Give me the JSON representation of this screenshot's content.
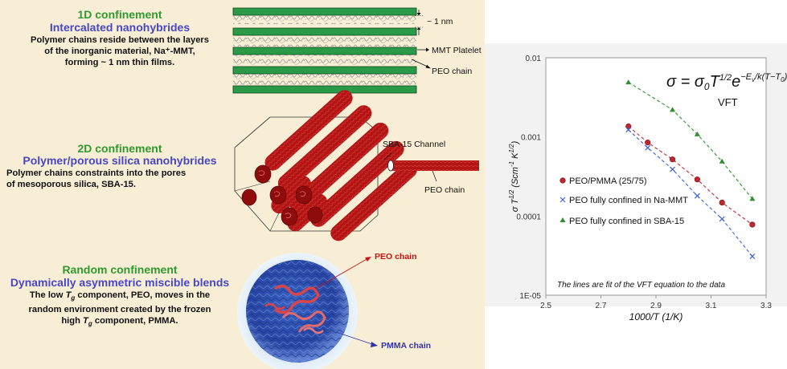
{
  "left": {
    "sec1": {
      "title": "1D confinement",
      "subtitle": "Intercalated nanohybrides",
      "desc_line1": "Polymer chains reside between the layers",
      "desc_line2": "of the inorganic material, Na⁺-MMT,",
      "desc_line3": "forming ~ 1 nm thin films.",
      "label_gap": "~ 1 nm",
      "label_platelet": "MMT Platelet",
      "label_chain": "PEO chain"
    },
    "sec2": {
      "title": "2D confinement",
      "subtitle": "Polymer/porous silica nanohybrides",
      "desc_line1": "Polymer chains constraints into the pores",
      "desc_line2": "of mesoporous silica, SBA-15.",
      "label_channel": "SBA-15 Channel",
      "label_chain": "PEO chain"
    },
    "sec3": {
      "title": "Random confinement",
      "subtitle": "Dynamically asymmetric miscible blends",
      "desc_pre1": "The low ",
      "desc_tg1": "T",
      "desc_sub1": "g",
      "desc_post1": " component, PEO, moves in the",
      "desc_line2": "random environment created by the frozen",
      "desc_pre3": "high ",
      "desc_tg3": "T",
      "desc_sub3": "g",
      "desc_post3": " component, PMMA.",
      "label_peo": "PEO chain",
      "label_pmma": "PMMA chain"
    }
  },
  "colors": {
    "panel_bg": "#f7eed5",
    "green_title": "#2f9a2f",
    "blue_title": "#4747c8",
    "platelet": "#2a9a48",
    "rod_red": "#b01010",
    "peo_label": "#cc1111",
    "pmma_label": "#3333aa"
  },
  "chart_data": {
    "type": "scatter",
    "equation": "σ = σ₀T¹ᐟ²e^(−Eᵥ/k(T−T₀))",
    "equation_label": "VFT",
    "xlabel": "1000/T (1/K)",
    "ylabel": "σ T^1/2 (Scm⁻¹ K^1/2)",
    "x_ticks": [
      "2.5",
      "2.7",
      "2.9",
      "3.1",
      "3.3"
    ],
    "y_ticks": [
      "0.01",
      "0.001",
      "0.0001",
      "1E-05"
    ],
    "xlim": [
      2.5,
      3.3
    ],
    "ylim": [
      1e-05,
      0.01
    ],
    "y_scale": "log",
    "grid": false,
    "legend_position": "left-middle",
    "annotation": "The lines are fit of the VFT equation to the data",
    "series": [
      {
        "name": "PEO/PMMA (25/75)",
        "marker": "circle",
        "color": "#c0282d",
        "x": [
          2.8,
          2.87,
          2.96,
          3.05,
          3.14,
          3.25
        ],
        "y": [
          0.00136,
          0.00085,
          0.00052,
          0.00029,
          0.000148,
          7.8e-05
        ]
      },
      {
        "name": "PEO fully confined in Na-MMT",
        "marker": "x",
        "color": "#3b5fd6",
        "x": [
          2.8,
          2.87,
          2.96,
          3.05,
          3.14,
          3.25
        ],
        "y": [
          0.00123,
          0.00073,
          0.00039,
          0.00018,
          9.2e-05,
          3.1e-05
        ]
      },
      {
        "name": "PEO fully confined in SBA-15",
        "marker": "triangle",
        "color": "#2e8f2e",
        "x": [
          2.8,
          2.96,
          3.05,
          3.14,
          3.25
        ],
        "y": [
          0.0049,
          0.0022,
          0.00108,
          0.00049,
          0.000165
        ]
      }
    ]
  }
}
